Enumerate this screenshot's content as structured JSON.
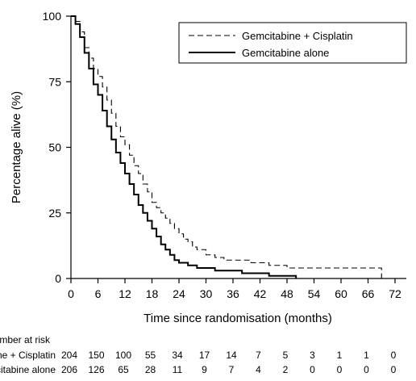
{
  "chart_data": {
    "type": "line",
    "title": "",
    "xlabel": "Time since randomisation (months)",
    "ylabel": "Percentage alive (%)",
    "xlim": [
      0,
      72
    ],
    "ylim": [
      0,
      100
    ],
    "x_ticks": [
      0,
      6,
      12,
      18,
      24,
      30,
      36,
      42,
      48,
      54,
      60,
      66,
      72
    ],
    "y_ticks": [
      0,
      25,
      50,
      75,
      100
    ],
    "grid": false,
    "legend_position": "top-right",
    "series": [
      {
        "name": "Gemcitabine + Cisplatin",
        "style": "dashed",
        "points": [
          [
            0,
            100
          ],
          [
            1,
            98
          ],
          [
            2,
            94
          ],
          [
            3,
            88
          ],
          [
            4,
            84
          ],
          [
            5,
            80
          ],
          [
            6,
            77
          ],
          [
            7,
            73
          ],
          [
            8,
            68
          ],
          [
            9,
            63
          ],
          [
            10,
            58
          ],
          [
            11,
            54
          ],
          [
            12,
            51
          ],
          [
            13,
            47
          ],
          [
            14,
            43
          ],
          [
            15,
            40
          ],
          [
            16,
            36
          ],
          [
            17,
            33
          ],
          [
            18,
            29
          ],
          [
            19,
            27
          ],
          [
            20,
            25
          ],
          [
            21,
            23
          ],
          [
            22,
            21
          ],
          [
            23,
            19
          ],
          [
            24,
            17
          ],
          [
            25,
            15
          ],
          [
            26,
            14
          ],
          [
            27,
            12
          ],
          [
            28,
            11
          ],
          [
            30,
            9
          ],
          [
            32,
            8
          ],
          [
            34,
            7
          ],
          [
            36,
            7
          ],
          [
            38,
            7
          ],
          [
            40,
            6
          ],
          [
            42,
            6
          ],
          [
            44,
            5
          ],
          [
            46,
            5
          ],
          [
            48,
            4
          ],
          [
            52,
            4
          ],
          [
            56,
            4
          ],
          [
            60,
            4
          ],
          [
            64,
            4
          ],
          [
            68,
            4
          ],
          [
            69,
            4
          ],
          [
            69,
            0
          ]
        ]
      },
      {
        "name": "Gemcitabine alone",
        "style": "solid",
        "points": [
          [
            0,
            100
          ],
          [
            1,
            97
          ],
          [
            2,
            92
          ],
          [
            3,
            86
          ],
          [
            4,
            80
          ],
          [
            5,
            74
          ],
          [
            6,
            70
          ],
          [
            7,
            64
          ],
          [
            8,
            58
          ],
          [
            9,
            53
          ],
          [
            10,
            48
          ],
          [
            11,
            44
          ],
          [
            12,
            40
          ],
          [
            13,
            36
          ],
          [
            14,
            32
          ],
          [
            15,
            28
          ],
          [
            16,
            25
          ],
          [
            17,
            22
          ],
          [
            18,
            19
          ],
          [
            19,
            16
          ],
          [
            20,
            13
          ],
          [
            21,
            11
          ],
          [
            22,
            9
          ],
          [
            23,
            7
          ],
          [
            24,
            6
          ],
          [
            26,
            5
          ],
          [
            28,
            4
          ],
          [
            30,
            4
          ],
          [
            32,
            3
          ],
          [
            34,
            3
          ],
          [
            36,
            3
          ],
          [
            38,
            2
          ],
          [
            40,
            2
          ],
          [
            42,
            2
          ],
          [
            44,
            1
          ],
          [
            46,
            1
          ],
          [
            48,
            1
          ],
          [
            49,
            1
          ],
          [
            50,
            0
          ]
        ]
      }
    ],
    "number_at_risk": {
      "title": "Number at risk",
      "rows": [
        {
          "label": "Gemcitabine + Cisplatin",
          "values": [
            204,
            150,
            100,
            55,
            34,
            17,
            14,
            7,
            5,
            3,
            1,
            1,
            0
          ]
        },
        {
          "label": "Gemcitabine alone",
          "values": [
            206,
            126,
            65,
            28,
            11,
            9,
            7,
            4,
            2,
            0,
            0,
            0,
            0
          ]
        }
      ]
    }
  }
}
